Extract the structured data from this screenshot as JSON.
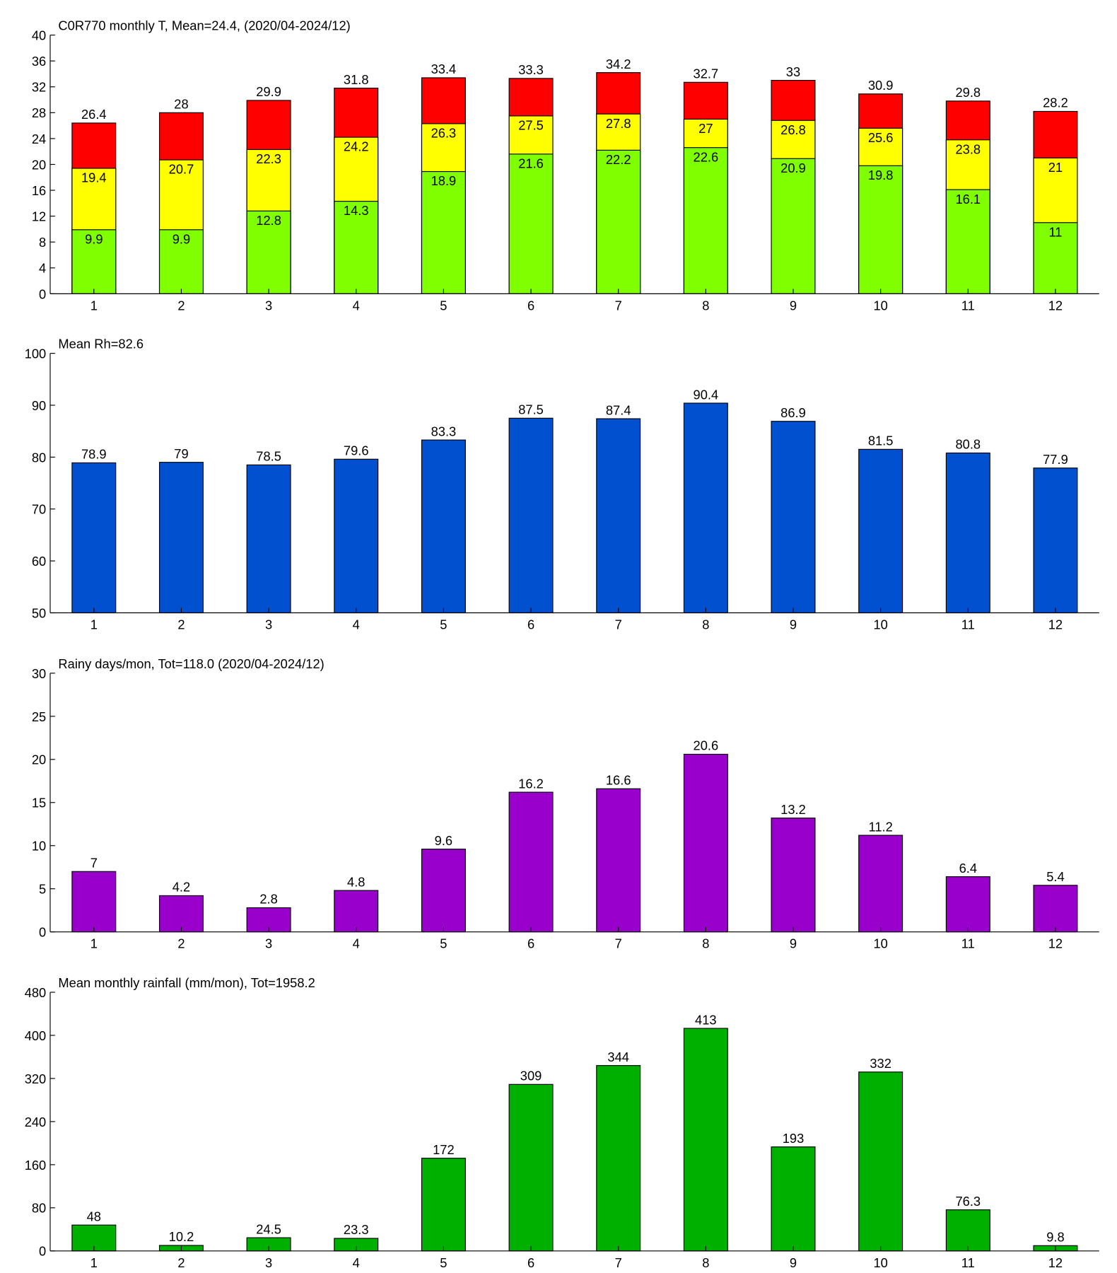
{
  "chart_data": [
    {
      "type": "bar",
      "title": "C0R770 monthly T, Mean=24.4, (2020/04-2024/12)",
      "categories": [
        1,
        2,
        3,
        4,
        5,
        6,
        7,
        8,
        9,
        10,
        11,
        12
      ],
      "series": [
        {
          "color": "#ff0000",
          "values": [
            26.4,
            28,
            29.9,
            31.8,
            33.4,
            33.3,
            34.2,
            32.7,
            33,
            30.9,
            29.8,
            28.2
          ]
        },
        {
          "color": "#ffff00",
          "values": [
            19.4,
            20.7,
            22.3,
            24.2,
            26.3,
            27.5,
            27.8,
            27,
            26.8,
            25.6,
            23.8,
            21
          ]
        },
        {
          "color": "#80ff00",
          "values": [
            9.9,
            9.9,
            12.8,
            14.3,
            18.9,
            21.6,
            22.2,
            22.6,
            20.9,
            19.8,
            16.1,
            11
          ]
        }
      ],
      "ylim": [
        0,
        40
      ],
      "yticks": [
        0,
        4,
        8,
        12,
        16,
        20,
        24,
        28,
        32,
        36,
        40
      ]
    },
    {
      "type": "bar",
      "title": "Mean Rh=82.6",
      "categories": [
        1,
        2,
        3,
        4,
        5,
        6,
        7,
        8,
        9,
        10,
        11,
        12
      ],
      "series": [
        {
          "color": "#0050d0",
          "values": [
            78.9,
            79,
            78.5,
            79.6,
            83.3,
            87.5,
            87.4,
            90.4,
            86.9,
            81.5,
            80.8,
            77.9
          ]
        }
      ],
      "ylim": [
        50,
        100
      ],
      "yticks": [
        50,
        60,
        70,
        80,
        90,
        100
      ]
    },
    {
      "type": "bar",
      "title": "Rainy days/mon, Tot=118.0 (2020/04-2024/12)",
      "categories": [
        1,
        2,
        3,
        4,
        5,
        6,
        7,
        8,
        9,
        10,
        11,
        12
      ],
      "series": [
        {
          "color": "#9900cc",
          "values": [
            7,
            4.2,
            2.8,
            4.8,
            9.6,
            16.2,
            16.6,
            20.6,
            13.2,
            11.2,
            6.4,
            5.4
          ]
        }
      ],
      "ylim": [
        0,
        30
      ],
      "yticks": [
        0,
        5,
        10,
        15,
        20,
        25,
        30
      ]
    },
    {
      "type": "bar",
      "title": "Mean monthly rainfall (mm/mon), Tot=1958.2",
      "categories": [
        1,
        2,
        3,
        4,
        5,
        6,
        7,
        8,
        9,
        10,
        11,
        12
      ],
      "series": [
        {
          "color": "#00b000",
          "values": [
            48,
            10.2,
            24.5,
            23.3,
            172,
            309,
            344,
            413,
            193,
            332,
            76.3,
            9.8
          ]
        }
      ],
      "ylim": [
        0,
        480
      ],
      "yticks": [
        0,
        80,
        160,
        240,
        320,
        400,
        480
      ]
    }
  ]
}
